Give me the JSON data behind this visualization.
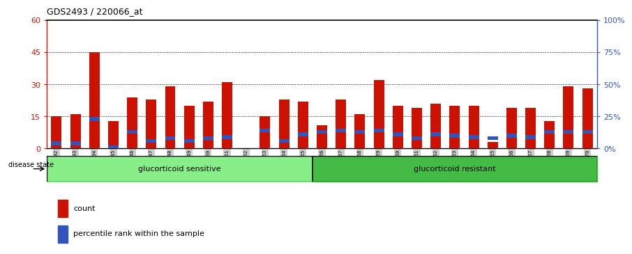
{
  "title": "GDS2493 / 220066_at",
  "samples": [
    "GSM135892",
    "GSM135893",
    "GSM135894",
    "GSM135945",
    "GSM135946",
    "GSM135947",
    "GSM135948",
    "GSM135949",
    "GSM135950",
    "GSM135951",
    "GSM135952",
    "GSM135953",
    "GSM135954",
    "GSM135955",
    "GSM135956",
    "GSM135957",
    "GSM135958",
    "GSM135959",
    "GSM135960",
    "GSM135961",
    "GSM135962",
    "GSM135963",
    "GSM135964",
    "GSM135965",
    "GSM135966",
    "GSM135967",
    "GSM135968",
    "GSM135969",
    "GSM135970"
  ],
  "counts": [
    15,
    16,
    45,
    13,
    24,
    23,
    29,
    20,
    22,
    31,
    0,
    15,
    23,
    22,
    11,
    23,
    16,
    32,
    20,
    19,
    21,
    20,
    20,
    3,
    19,
    19,
    13,
    29,
    28
  ],
  "percentiles": [
    4,
    4,
    23,
    1,
    13,
    6,
    8,
    6,
    8,
    9,
    0,
    14,
    6,
    11,
    13,
    14,
    13,
    14,
    11,
    8,
    11,
    10,
    9,
    8,
    10,
    9,
    13,
    13,
    13
  ],
  "sensitive_count": 14,
  "resistant_count": 15,
  "sensitive_label": "glucorticoid sensitive",
  "resistant_label": "glucorticoid resistant",
  "disease_state_label": "disease state",
  "bar_color": "#cc1100",
  "percentile_color": "#3355bb",
  "sensitive_bg": "#88ee88",
  "resistant_bg": "#44bb44",
  "ylim_left": [
    0,
    60
  ],
  "ylim_right": [
    0,
    100
  ],
  "yticks_left": [
    0,
    15,
    30,
    45,
    60
  ],
  "yticks_right": [
    0,
    25,
    50,
    75,
    100
  ],
  "ytick_labels_left": [
    "0",
    "15",
    "30",
    "45",
    "60"
  ],
  "ytick_labels_right": [
    "0%",
    "25%",
    "50%",
    "75%",
    "100%"
  ],
  "grid_lines": [
    15,
    30,
    45
  ],
  "legend_count_label": "count",
  "legend_percentile_label": "percentile rank within the sample"
}
